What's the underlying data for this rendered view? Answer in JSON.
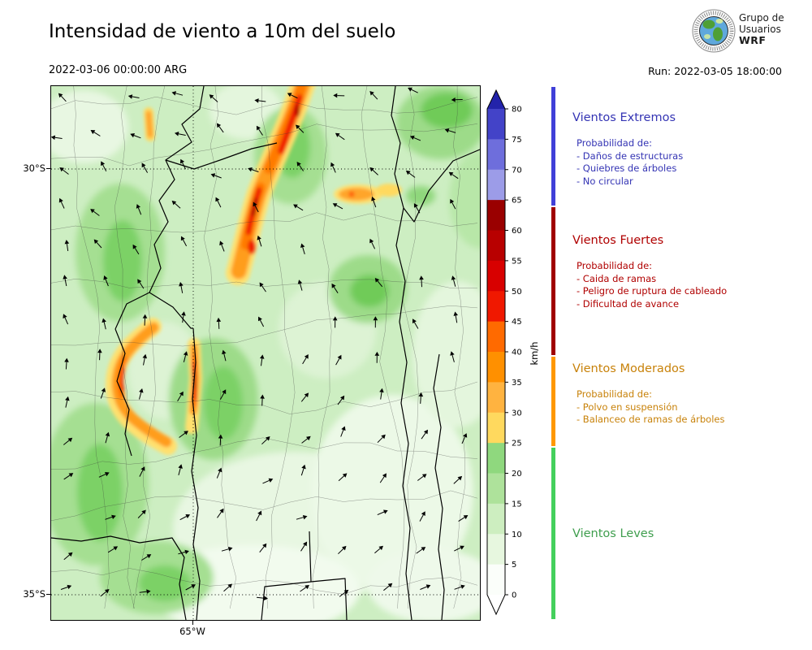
{
  "header": {
    "title": "Intensidad de viento a 10m del suelo",
    "valid_time": "2022-03-06 00:00:00 ARG",
    "run_label": "Run: 2022-03-05 18:00:00",
    "logo": {
      "line1": "Grupo de",
      "line2": "Usuarios",
      "line3": "WRF"
    }
  },
  "map": {
    "lat_ticks": [
      {
        "label": "30°S"
      },
      {
        "label": "35°S"
      }
    ],
    "lon_ticks": [
      {
        "label": "65°W"
      }
    ]
  },
  "colorbar": {
    "unit": "km/h",
    "tick_values": [
      80,
      75,
      70,
      65,
      60,
      55,
      50,
      45,
      40,
      35,
      30,
      25,
      20,
      15,
      10,
      5,
      0
    ],
    "segments_top_to_bottom": [
      "#4343c8",
      "#6e6edc",
      "#9c9ce8",
      "#9a0000",
      "#b80000",
      "#d80000",
      "#f01800",
      "#ff6a00",
      "#ff9000",
      "#ffb340",
      "#ffd95e",
      "#8fd87e",
      "#aee29b",
      "#cdeec0",
      "#e7f7df",
      "#fbfefa"
    ],
    "overflow_color": "#2323aa",
    "underflow_color": "#ffffff"
  },
  "legend": {
    "prob_label": "Probabilidad de:",
    "categories": [
      {
        "name": "Vientos Extremos",
        "text_color": "#3434b4",
        "bar_color": "#4040d8",
        "items": [
          "- Daños de estructuras",
          "- Quiebres de árboles",
          "- No circular"
        ]
      },
      {
        "name": "Vientos Fuertes",
        "text_color": "#b00000",
        "bar_color": "#a00000",
        "items": [
          "- Caida de ramas",
          "- Peligro de ruptura de cableado",
          "- Dificultad de avance"
        ]
      },
      {
        "name": "Vientos Moderados",
        "text_color": "#c8820a",
        "bar_color": "#ff9800",
        "items": [
          "- Polvo en suspensión",
          "- Balanceo de ramas de árboles"
        ]
      },
      {
        "name": "Vientos Leves",
        "text_color": "#3f9e4e",
        "bar_color": "#44d05c",
        "items": []
      }
    ]
  }
}
